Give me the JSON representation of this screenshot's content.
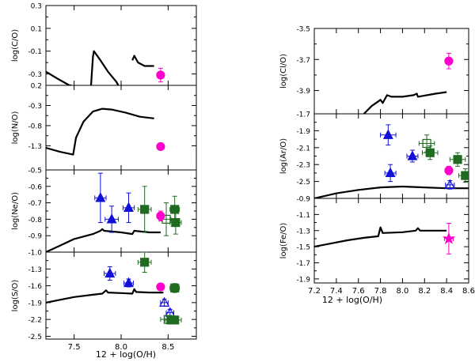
{
  "colors": {
    "model": "#000000",
    "magenta": "#ff00cc",
    "blue": "#1010d8",
    "green": "#1f6b1f",
    "axis": "#000000"
  },
  "chart_data": [
    {
      "type": "scatter",
      "title": "",
      "xlabel": "",
      "ylabel": "log(C/O)",
      "xlim": [
        7.2,
        8.8
      ],
      "ylim": [
        -0.4,
        0.3
      ],
      "yticks": [
        "0.3",
        "0.1",
        "-0.1",
        "-0.3"
      ],
      "ytick_values": [
        0.3,
        0.1,
        -0.1,
        -0.3
      ],
      "model_line": [
        [
          7.2,
          -0.28
        ],
        [
          7.32,
          -0.34
        ],
        [
          7.45,
          -0.4
        ],
        [
          7.47,
          -0.4
        ]
      ],
      "model_line2": [
        [
          7.68,
          -0.4
        ],
        [
          7.7,
          -0.15
        ],
        [
          7.71,
          -0.1
        ],
        [
          7.78,
          -0.18
        ],
        [
          7.86,
          -0.28
        ],
        [
          7.95,
          -0.37
        ],
        [
          7.97,
          -0.4
        ]
      ],
      "model_line3": [
        [
          8.12,
          -0.18
        ],
        [
          8.14,
          -0.14
        ],
        [
          8.18,
          -0.2
        ],
        [
          8.25,
          -0.23
        ],
        [
          8.35,
          -0.23
        ]
      ],
      "points": [
        {
          "series": "magenta",
          "marker": "circle",
          "filled": true,
          "x": 8.42,
          "y": -0.31,
          "xerr": 0.03,
          "yerr": 0.06
        }
      ]
    },
    {
      "type": "scatter",
      "ylabel": "log(N/O)",
      "xlim": [
        7.2,
        8.8
      ],
      "ylim": [
        -1.9,
        0.2
      ],
      "yticks": [
        "0.2",
        "-0.3",
        "-0.8",
        "-1.3"
      ],
      "ytick_values": [
        0.2,
        -0.3,
        -0.8,
        -1.3
      ],
      "model_line": [
        [
          7.2,
          -1.35
        ],
        [
          7.35,
          -1.45
        ],
        [
          7.49,
          -1.52
        ],
        [
          7.52,
          -1.1
        ],
        [
          7.6,
          -0.7
        ],
        [
          7.7,
          -0.45
        ],
        [
          7.8,
          -0.38
        ],
        [
          7.9,
          -0.4
        ],
        [
          8.05,
          -0.48
        ],
        [
          8.2,
          -0.58
        ],
        [
          8.35,
          -0.62
        ]
      ],
      "points": [
        {
          "series": "magenta",
          "marker": "circle",
          "filled": true,
          "x": 8.42,
          "y": -1.32,
          "xerr": 0.03,
          "yerr": 0.08
        }
      ]
    },
    {
      "type": "scatter",
      "ylabel": "log(Ne/O)",
      "xlim": [
        7.2,
        8.8
      ],
      "ylim": [
        -1.0,
        -0.5
      ],
      "yticks": [
        "-0.5",
        "-0.6",
        "-0.7",
        "-0.8",
        "-0.9"
      ],
      "ytick_values": [
        -0.5,
        -0.6,
        -0.7,
        -0.8,
        -0.9
      ],
      "model_line": [
        [
          7.2,
          -1.0
        ],
        [
          7.35,
          -0.96
        ],
        [
          7.5,
          -0.92
        ],
        [
          7.7,
          -0.89
        ],
        [
          7.78,
          -0.87
        ],
        [
          7.8,
          -0.86
        ],
        [
          7.82,
          -0.87
        ],
        [
          8.0,
          -0.88
        ],
        [
          8.12,
          -0.89
        ],
        [
          8.14,
          -0.87
        ],
        [
          8.3,
          -0.88
        ],
        [
          8.42,
          -0.88
        ]
      ],
      "points": [
        {
          "series": "blue",
          "marker": "triangle",
          "filled": true,
          "x": 7.78,
          "y": -0.67,
          "xerr": 0.06,
          "yerr": 0.15
        },
        {
          "series": "blue",
          "marker": "triangle",
          "filled": true,
          "x": 7.9,
          "y": -0.8,
          "xerr": 0.07,
          "yerr": 0.08
        },
        {
          "series": "blue",
          "marker": "triangle",
          "filled": true,
          "x": 8.08,
          "y": -0.73,
          "xerr": 0.06,
          "yerr": 0.09
        },
        {
          "series": "green",
          "marker": "square",
          "filled": true,
          "x": 8.25,
          "y": -0.74,
          "xerr": 0.07,
          "yerr": 0.14
        },
        {
          "series": "green",
          "marker": "square",
          "filled": false,
          "x": 8.48,
          "y": -0.8,
          "xerr": 0.05,
          "yerr": 0.1
        },
        {
          "series": "green",
          "marker": "square",
          "filled": true,
          "x": 8.57,
          "y": -0.74,
          "xerr": 0.05,
          "yerr": 0.08
        },
        {
          "series": "green",
          "marker": "square",
          "filled": true,
          "x": 8.58,
          "y": -0.82,
          "xerr": 0.06,
          "yerr": 0.07
        },
        {
          "series": "magenta",
          "marker": "circle",
          "filled": true,
          "x": 8.42,
          "y": -0.78,
          "xerr": 0.03,
          "yerr": 0.03
        }
      ]
    },
    {
      "type": "scatter",
      "ylabel": "log(S/O)",
      "xlim": [
        7.2,
        8.8
      ],
      "ylim": [
        -2.55,
        -1.0
      ],
      "yticks": [
        "-1.0",
        "-1.3",
        "-1.6",
        "-1.9",
        "-2.2",
        "-2.5"
      ],
      "ytick_values": [
        -1.0,
        -1.3,
        -1.6,
        -1.9,
        -2.2,
        -2.5
      ],
      "xticks": [
        "7.5",
        "8.0",
        "8.5"
      ],
      "xtick_values": [
        7.5,
        8.0,
        8.5
      ],
      "model_line": [
        [
          7.2,
          -1.9
        ],
        [
          7.35,
          -1.85
        ],
        [
          7.5,
          -1.8
        ],
        [
          7.7,
          -1.76
        ],
        [
          7.8,
          -1.74
        ],
        [
          7.84,
          -1.68
        ],
        [
          7.86,
          -1.72
        ],
        [
          8.0,
          -1.73
        ],
        [
          8.12,
          -1.74
        ],
        [
          8.14,
          -1.66
        ],
        [
          8.16,
          -1.71
        ],
        [
          8.3,
          -1.72
        ],
        [
          8.45,
          -1.72
        ]
      ],
      "points": [
        {
          "series": "blue",
          "marker": "triangle",
          "filled": true,
          "x": 7.88,
          "y": -1.38,
          "xerr": 0.06,
          "yerr": 0.12
        },
        {
          "series": "blue",
          "marker": "triangle",
          "filled": true,
          "x": 8.08,
          "y": -1.55,
          "xerr": 0.05,
          "yerr": 0.07
        },
        {
          "series": "green",
          "marker": "square",
          "filled": true,
          "x": 8.25,
          "y": -1.18,
          "xerr": 0.07,
          "yerr": 0.18
        },
        {
          "series": "green",
          "marker": "square",
          "filled": true,
          "x": 8.57,
          "y": -1.64,
          "xerr": 0.05,
          "yerr": 0.08
        },
        {
          "series": "blue",
          "marker": "triangle",
          "filled": false,
          "x": 8.46,
          "y": -1.9,
          "xerr": 0.04,
          "yerr": 0.06
        },
        {
          "series": "blue",
          "marker": "triangle",
          "filled": false,
          "x": 8.52,
          "y": -2.08,
          "xerr": 0.04,
          "yerr": 0.06
        },
        {
          "series": "green",
          "marker": "square",
          "filled": false,
          "x": 8.5,
          "y": -2.2,
          "xerr": 0.08,
          "yerr": 0.06
        },
        {
          "series": "green",
          "marker": "square",
          "filled": true,
          "x": 8.53,
          "y": -2.21,
          "xerr": 0.06,
          "yerr": 0.05
        },
        {
          "series": "green",
          "marker": "square",
          "filled": true,
          "x": 8.57,
          "y": -2.21,
          "xerr": 0.07,
          "yerr": 0.05
        },
        {
          "series": "magenta",
          "marker": "circle",
          "filled": true,
          "x": 8.42,
          "y": -1.62,
          "xerr": 0.03,
          "yerr": 0.04
        }
      ]
    },
    {
      "type": "scatter",
      "ylabel": "log(Cl/O)",
      "xlim": [
        7.2,
        8.6
      ],
      "ylim": [
        -4.05,
        -3.5
      ],
      "yticks": [
        "-3.5",
        "-3.7",
        "-3.9"
      ],
      "ytick_values": [
        -3.5,
        -3.7,
        -3.9
      ],
      "model_line": [
        [
          7.65,
          -4.05
        ],
        [
          7.72,
          -4.0
        ],
        [
          7.78,
          -3.97
        ],
        [
          7.8,
          -3.96
        ],
        [
          7.82,
          -3.98
        ],
        [
          7.86,
          -3.93
        ],
        [
          7.9,
          -3.94
        ],
        [
          8.0,
          -3.94
        ],
        [
          8.1,
          -3.93
        ],
        [
          8.13,
          -3.92
        ],
        [
          8.14,
          -3.94
        ],
        [
          8.3,
          -3.92
        ],
        [
          8.4,
          -3.91
        ]
      ],
      "points": [
        {
          "series": "magenta",
          "marker": "circle",
          "filled": true,
          "x": 8.42,
          "y": -3.71,
          "xerr": 0.03,
          "yerr": 0.05
        }
      ]
    },
    {
      "type": "scatter",
      "ylabel": "log(Ar/O)",
      "xlim": [
        7.2,
        8.6
      ],
      "ylim": [
        -2.7,
        -1.7
      ],
      "yticks": [
        "-1.7",
        "-1.9",
        "-2.1",
        "-2.3",
        "-2.5"
      ],
      "ytick_values": [
        -1.7,
        -1.9,
        -2.1,
        -2.3,
        -2.5
      ],
      "model_line": [
        [
          7.2,
          -2.7
        ],
        [
          7.4,
          -2.64
        ],
        [
          7.6,
          -2.6
        ],
        [
          7.8,
          -2.57
        ],
        [
          8.0,
          -2.56
        ],
        [
          8.2,
          -2.57
        ],
        [
          8.4,
          -2.58
        ],
        [
          8.6,
          -2.58
        ]
      ],
      "points": [
        {
          "series": "blue",
          "marker": "triangle",
          "filled": true,
          "x": 7.87,
          "y": -1.95,
          "xerr": 0.07,
          "yerr": 0.12
        },
        {
          "series": "blue",
          "marker": "triangle",
          "filled": true,
          "x": 7.89,
          "y": -2.4,
          "xerr": 0.05,
          "yerr": 0.1
        },
        {
          "series": "blue",
          "marker": "triangle",
          "filled": true,
          "x": 8.09,
          "y": -2.2,
          "xerr": 0.05,
          "yerr": 0.07
        },
        {
          "series": "green",
          "marker": "square",
          "filled": false,
          "x": 8.22,
          "y": -2.05,
          "xerr": 0.07,
          "yerr": 0.1
        },
        {
          "series": "green",
          "marker": "square",
          "filled": true,
          "x": 8.25,
          "y": -2.16,
          "xerr": 0.07,
          "yerr": 0.08
        },
        {
          "series": "green",
          "marker": "square",
          "filled": true,
          "x": 8.5,
          "y": -2.24,
          "xerr": 0.07,
          "yerr": 0.08
        },
        {
          "series": "green",
          "marker": "square",
          "filled": true,
          "x": 8.57,
          "y": -2.43,
          "xerr": 0.06,
          "yerr": 0.08
        },
        {
          "series": "blue",
          "marker": "triangle",
          "filled": false,
          "x": 8.43,
          "y": -2.54,
          "xerr": 0.04,
          "yerr": 0.05
        },
        {
          "series": "magenta",
          "marker": "circle",
          "filled": true,
          "x": 8.42,
          "y": -2.37,
          "xerr": 0.03,
          "yerr": 0.05
        }
      ]
    },
    {
      "type": "scatter",
      "ylabel": "log(Fe/O)",
      "xlim": [
        7.2,
        8.6
      ],
      "ylim": [
        -1.95,
        -0.9
      ],
      "yticks": [
        "-0.9",
        "-1.1",
        "-1.3",
        "-1.5",
        "-1.7",
        "-1.9"
      ],
      "ytick_values": [
        -0.9,
        -1.1,
        -1.3,
        -1.5,
        -1.7,
        -1.9
      ],
      "xticks": [
        "7.2",
        "7.4",
        "7.6",
        "7.8",
        "8.0",
        "8.2",
        "8.4",
        "8.6"
      ],
      "xtick_values": [
        7.2,
        7.4,
        7.6,
        7.8,
        8.0,
        8.2,
        8.4,
        8.6
      ],
      "model_line": [
        [
          7.2,
          -1.5
        ],
        [
          7.35,
          -1.46
        ],
        [
          7.5,
          -1.42
        ],
        [
          7.65,
          -1.39
        ],
        [
          7.78,
          -1.37
        ],
        [
          7.8,
          -1.26
        ],
        [
          7.82,
          -1.33
        ],
        [
          8.0,
          -1.32
        ],
        [
          8.12,
          -1.3
        ],
        [
          8.14,
          -1.27
        ],
        [
          8.16,
          -1.3
        ],
        [
          8.3,
          -1.3
        ],
        [
          8.4,
          -1.3
        ]
      ],
      "points": [
        {
          "series": "magenta",
          "marker": "star",
          "filled": true,
          "x": 8.42,
          "y": -1.4,
          "xerr": 0.04,
          "yerr": 0.19
        }
      ]
    }
  ],
  "shared_xlabel": "12 + log(O/H)",
  "right_xlabel": "12 + log(O/H)"
}
